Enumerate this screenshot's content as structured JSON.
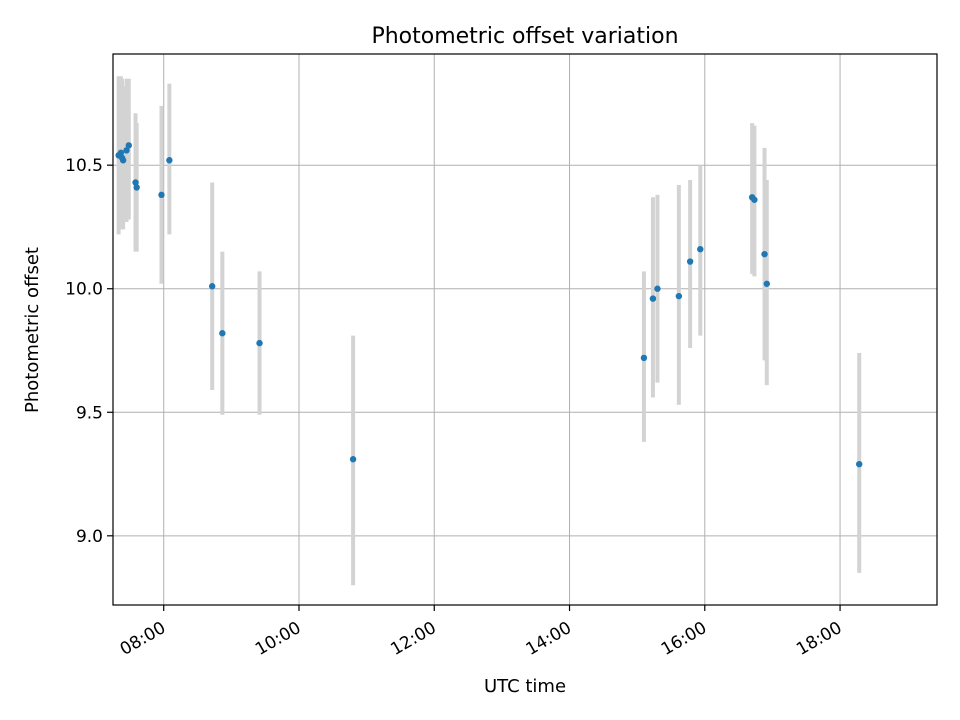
{
  "chart_data": {
    "type": "scatter",
    "title": "Photometric offset variation",
    "xlabel": "UTC time",
    "ylabel": "Photometric offset",
    "x_unit": "UTC HH:MM",
    "xlim": [
      "07:15",
      "19:26"
    ],
    "ylim": [
      8.72,
      10.95
    ],
    "xticks": [
      "08:00",
      "10:00",
      "12:00",
      "14:00",
      "16:00",
      "18:00"
    ],
    "yticks": [
      "9.0",
      "9.5",
      "10.0",
      "10.5"
    ],
    "grid": true,
    "colors": {
      "marker": "#1f77b4",
      "errorbar": "#d3d3d3",
      "grid": "#b0b0b0"
    },
    "points": [
      {
        "x": "07:20",
        "y": 10.54,
        "ylo": 10.22,
        "yhi": 10.86
      },
      {
        "x": "07:22",
        "y": 10.55,
        "ylo": 10.24,
        "yhi": 10.86
      },
      {
        "x": "07:23",
        "y": 10.53,
        "ylo": 10.25,
        "yhi": 10.85
      },
      {
        "x": "07:24",
        "y": 10.52,
        "ylo": 10.24,
        "yhi": 10.82
      },
      {
        "x": "07:27",
        "y": 10.56,
        "ylo": 10.27,
        "yhi": 10.85
      },
      {
        "x": "07:29",
        "y": 10.58,
        "ylo": 10.28,
        "yhi": 10.85
      },
      {
        "x": "07:35",
        "y": 10.43,
        "ylo": 10.15,
        "yhi": 10.71
      },
      {
        "x": "07:36",
        "y": 10.41,
        "ylo": 10.15,
        "yhi": 10.67
      },
      {
        "x": "07:58",
        "y": 10.38,
        "ylo": 10.02,
        "yhi": 10.74
      },
      {
        "x": "08:05",
        "y": 10.52,
        "ylo": 10.22,
        "yhi": 10.83
      },
      {
        "x": "08:43",
        "y": 10.01,
        "ylo": 9.59,
        "yhi": 10.43
      },
      {
        "x": "08:52",
        "y": 9.82,
        "ylo": 9.49,
        "yhi": 10.15
      },
      {
        "x": "09:25",
        "y": 9.78,
        "ylo": 9.49,
        "yhi": 10.07
      },
      {
        "x": "10:48",
        "y": 9.31,
        "ylo": 8.8,
        "yhi": 9.81
      },
      {
        "x": "15:06",
        "y": 9.72,
        "ylo": 9.38,
        "yhi": 10.07
      },
      {
        "x": "15:14",
        "y": 9.96,
        "ylo": 9.56,
        "yhi": 10.37
      },
      {
        "x": "15:18",
        "y": 10.0,
        "ylo": 9.62,
        "yhi": 10.38
      },
      {
        "x": "15:37",
        "y": 9.97,
        "ylo": 9.53,
        "yhi": 10.42
      },
      {
        "x": "15:47",
        "y": 10.11,
        "ylo": 9.76,
        "yhi": 10.44
      },
      {
        "x": "15:56",
        "y": 10.16,
        "ylo": 9.81,
        "yhi": 10.5
      },
      {
        "x": "16:42",
        "y": 10.37,
        "ylo": 10.06,
        "yhi": 10.67
      },
      {
        "x": "16:44",
        "y": 10.36,
        "ylo": 10.05,
        "yhi": 10.66
      },
      {
        "x": "16:53",
        "y": 10.14,
        "ylo": 9.71,
        "yhi": 10.57
      },
      {
        "x": "16:55",
        "y": 10.02,
        "ylo": 9.61,
        "yhi": 10.44
      },
      {
        "x": "18:17",
        "y": 9.29,
        "ylo": 8.85,
        "yhi": 9.74
      }
    ]
  }
}
